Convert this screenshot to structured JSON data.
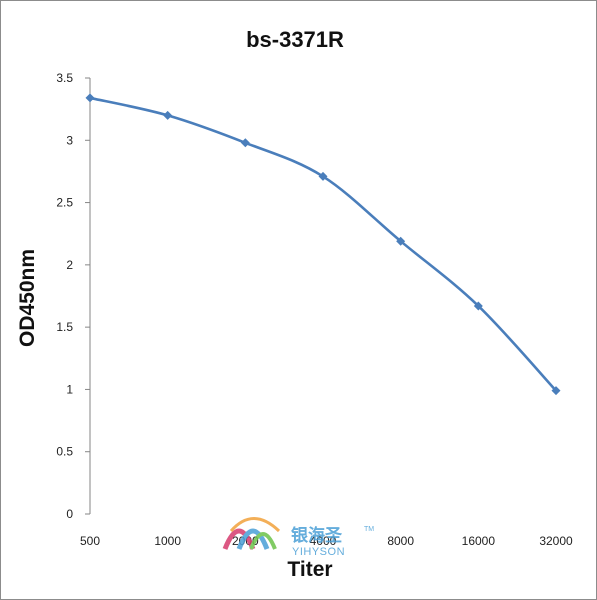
{
  "chart_data": {
    "type": "line",
    "title": "bs-3371R",
    "xlabel": "Titer",
    "ylabel": "OD450nm",
    "categories": [
      "500",
      "1000",
      "2000",
      "4000",
      "8000",
      "16000",
      "32000"
    ],
    "series": [
      {
        "values": [
          3.34,
          3.2,
          2.98,
          2.71,
          2.19,
          1.67,
          0.99
        ]
      }
    ],
    "ylim": [
      0,
      3.5
    ],
    "yticks": [
      "0",
      "0.5",
      "1",
      "1.5",
      "2",
      "2.5",
      "3",
      "3.5"
    ],
    "grid": false,
    "legend": "none",
    "colors": {
      "series": "#4a7ebb",
      "axis": "#868686"
    }
  },
  "watermark": {
    "name_cn": "银海圣",
    "name_en": "YIHYSON",
    "mark": "TM"
  }
}
